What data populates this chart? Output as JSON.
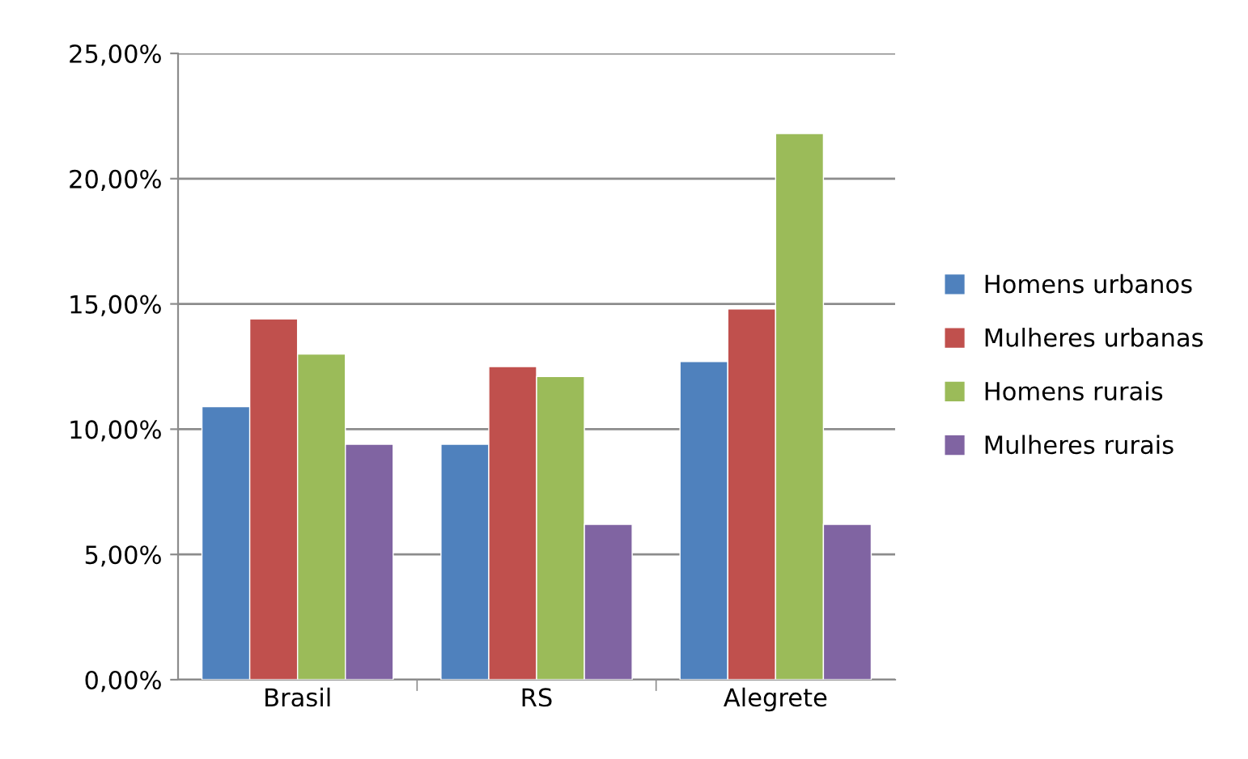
{
  "chart_data": {
    "type": "bar",
    "categories": [
      "Brasil",
      "RS",
      "Alegrete"
    ],
    "series": [
      {
        "name": "Homens urbanos",
        "color": "#4f81bd",
        "values": [
          10.9,
          9.4,
          12.7
        ]
      },
      {
        "name": "Mulheres urbanas",
        "color": "#c0504d",
        "values": [
          14.4,
          12.5,
          14.8
        ]
      },
      {
        "name": "Homens rurais",
        "color": "#9bbb59",
        "values": [
          13.0,
          12.1,
          21.8
        ]
      },
      {
        "name": "Mulheres rurais",
        "color": "#8064a2",
        "values": [
          9.4,
          6.2,
          6.2
        ]
      }
    ],
    "ylim": [
      0,
      25
    ],
    "yticks": [
      {
        "value": 0,
        "label": "0,00%"
      },
      {
        "value": 5,
        "label": "5,00%"
      },
      {
        "value": 10,
        "label": "10,00%"
      },
      {
        "value": 15,
        "label": "15,00%"
      },
      {
        "value": 20,
        "label": "20,00%"
      },
      {
        "value": 25,
        "label": "25,00%"
      }
    ],
    "grid": "y",
    "legend": "right"
  }
}
